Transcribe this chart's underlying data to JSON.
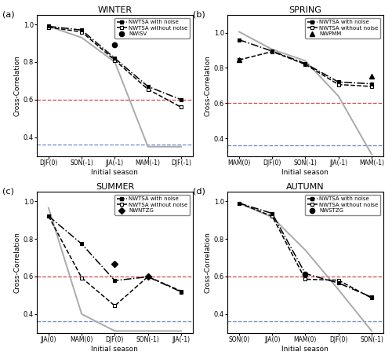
{
  "panels": [
    {
      "label": "(a)",
      "title": "WINTER",
      "xticks": [
        "DJF(0)",
        "SON(-1)",
        "JJA(-1)",
        "MAM(-1)",
        "DJF(-1)"
      ],
      "ylim": [
        0.3,
        1.05
      ],
      "yticks": [
        0.4,
        0.6,
        0.8,
        1.0
      ],
      "with_noise": [
        0.99,
        0.97,
        0.82,
        0.67,
        0.6
      ],
      "without_noise": [
        0.985,
        0.96,
        0.81,
        0.655,
        0.56
      ],
      "persistence": [
        0.99,
        0.93,
        0.8,
        0.35,
        0.35
      ],
      "extra_data": [
        [
          2,
          0.893
        ]
      ],
      "extra_marker": "o",
      "legend_extra": "NWISV"
    },
    {
      "label": "(b)",
      "title": "SPRING",
      "xticks": [
        "MAM(0)",
        "DJF(0)",
        "SON(-1)",
        "JJA(-1)",
        "MAM(-1)"
      ],
      "ylim": [
        0.3,
        1.1
      ],
      "yticks": [
        0.4,
        0.6,
        0.8,
        1.0
      ],
      "with_noise": [
        0.96,
        0.895,
        0.825,
        0.72,
        0.71
      ],
      "without_noise": [
        0.845,
        0.893,
        0.82,
        0.706,
        0.695
      ],
      "persistence": [
        1.005,
        0.905,
        0.84,
        0.64,
        0.31
      ],
      "extra_data": [
        [
          0,
          0.848
        ],
        [
          4,
          0.755
        ]
      ],
      "extra_marker": "^",
      "legend_extra": "NWPMM"
    },
    {
      "label": "(c)",
      "title": "SUMMER",
      "xticks": [
        "JJA(0)",
        "MAM(0)",
        "DJF(0)",
        "SON(-1)",
        "JJA(-1)"
      ],
      "ylim": [
        0.3,
        1.05
      ],
      "yticks": [
        0.4,
        0.6,
        0.8,
        1.0
      ],
      "with_noise": [
        0.921,
        0.773,
        0.578,
        0.598,
        0.518
      ],
      "without_noise": [
        0.921,
        0.593,
        0.444,
        0.599,
        0.522
      ],
      "persistence": [
        0.965,
        0.4,
        0.31,
        0.31,
        0.31
      ],
      "extra_data": [
        [
          2,
          0.665
        ],
        [
          3,
          0.6
        ]
      ],
      "extra_marker": "D",
      "legend_extra": "NWNTZG"
    },
    {
      "label": "(d)",
      "title": "AUTUMN",
      "xticks": [
        "SON(0)",
        "JJA(0)",
        "MAM(0)",
        "DJF(0)",
        "SON(-1)"
      ],
      "ylim": [
        0.3,
        1.05
      ],
      "yticks": [
        0.4,
        0.6,
        0.8,
        1.0
      ],
      "with_noise": [
        0.99,
        0.935,
        0.615,
        0.565,
        0.49
      ],
      "without_noise": [
        0.99,
        0.92,
        0.585,
        0.58,
        0.485
      ],
      "persistence": [
        0.99,
        0.915,
        0.74,
        0.53,
        0.31
      ],
      "extra_data": [
        [
          2,
          0.61
        ]
      ],
      "extra_marker": "o",
      "legend_extra": "NWSTZG"
    }
  ],
  "red_threshold": 0.6,
  "blue_threshold": 0.36,
  "color_persistence": "#aaaaaa",
  "color_red": "#dd4444",
  "color_blue": "#6688cc",
  "xlabel": "Initial season",
  "ylabel": "Cross-Correlation"
}
